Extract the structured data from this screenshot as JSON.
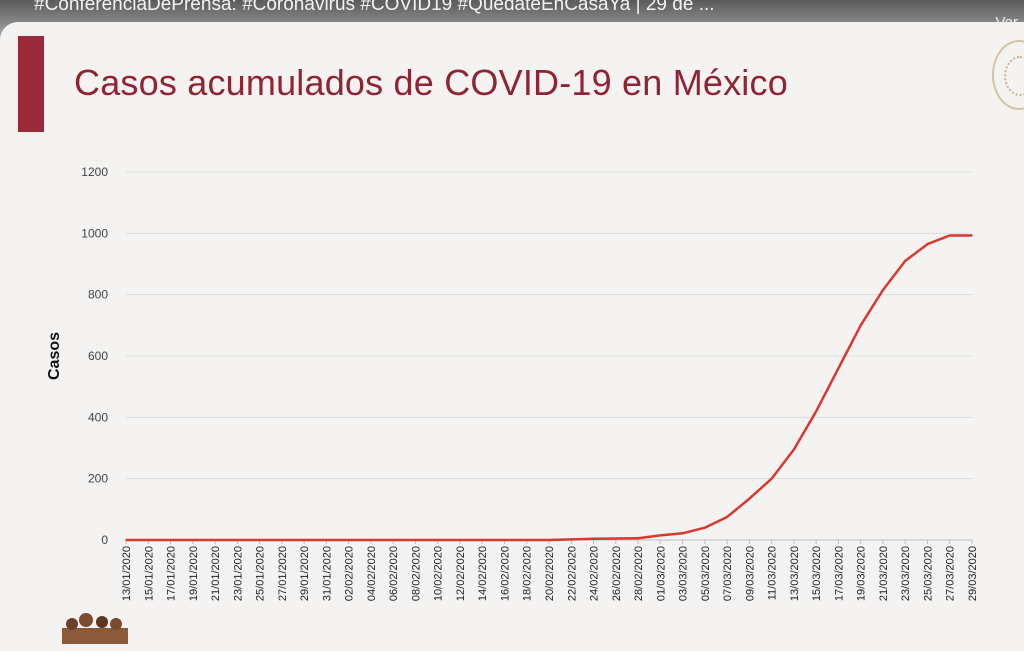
{
  "video": {
    "title": "#ConferenciaDePrensa: #Coronavirus #COVID19 #QuédateEnCasaYa | 29 de ...",
    "more_label": "Ver"
  },
  "slide": {
    "title": "Casos acumulados de COVID-19 en México",
    "accent_color": "#9b2a3a",
    "title_color": "#8f2433",
    "seal_icon": "coat-of-arms-icon",
    "footer_icon": "historical-figures-icon"
  },
  "chart_data": {
    "type": "line",
    "title": "Casos acumulados de COVID-19 en México",
    "xlabel": "",
    "ylabel": "Casos",
    "ylim": [
      0,
      1200
    ],
    "yticks": [
      0,
      200,
      400,
      600,
      800,
      1000,
      1200
    ],
    "grid": true,
    "legend": "none",
    "line_color": "#d9382e",
    "x_tick_labels": [
      "13/01/2020",
      "15/01/2020",
      "17/01/2020",
      "19/01/2020",
      "21/01/2020",
      "23/01/2020",
      "25/01/2020",
      "27/01/2020",
      "29/01/2020",
      "31/01/2020",
      "02/02/2020",
      "04/02/2020",
      "06/02/2020",
      "08/02/2020",
      "10/02/2020",
      "12/02/2020",
      "14/02/2020",
      "16/02/2020",
      "18/02/2020",
      "20/02/2020",
      "22/02/2020",
      "24/02/2020",
      "26/02/2020",
      "28/02/2020",
      "01/03/2020",
      "03/03/2020",
      "05/03/2020",
      "07/03/2020",
      "09/03/2020",
      "11/03/2020",
      "13/03/2020",
      "15/03/2020",
      "17/03/2020",
      "19/03/2020",
      "21/03/2020",
      "23/03/2020",
      "25/03/2020",
      "27/03/2020",
      "29/03/2020"
    ],
    "series": [
      {
        "x": [
          "13/01/2020",
          "15/01/2020",
          "17/01/2020",
          "19/01/2020",
          "21/01/2020",
          "23/01/2020",
          "25/01/2020",
          "27/01/2020",
          "29/01/2020",
          "31/01/2020",
          "02/02/2020",
          "04/02/2020",
          "06/02/2020",
          "08/02/2020",
          "10/02/2020",
          "12/02/2020",
          "14/02/2020",
          "16/02/2020",
          "18/02/2020",
          "20/02/2020",
          "22/02/2020",
          "24/02/2020",
          "26/02/2020",
          "28/02/2020",
          "01/03/2020",
          "03/03/2020",
          "05/03/2020",
          "07/03/2020",
          "09/03/2020",
          "11/03/2020",
          "13/03/2020",
          "15/03/2020",
          "17/03/2020",
          "19/03/2020",
          "21/03/2020",
          "23/03/2020",
          "25/03/2020",
          "27/03/2020",
          "29/03/2020"
        ],
        "values": [
          0,
          0,
          0,
          0,
          0,
          0,
          0,
          0,
          0,
          0,
          0,
          0,
          0,
          0,
          0,
          0,
          0,
          0,
          0,
          0,
          2,
          4,
          5,
          6,
          15,
          22,
          40,
          75,
          135,
          200,
          295,
          420,
          560,
          700,
          815,
          910,
          965,
          993,
          993
        ]
      }
    ]
  }
}
